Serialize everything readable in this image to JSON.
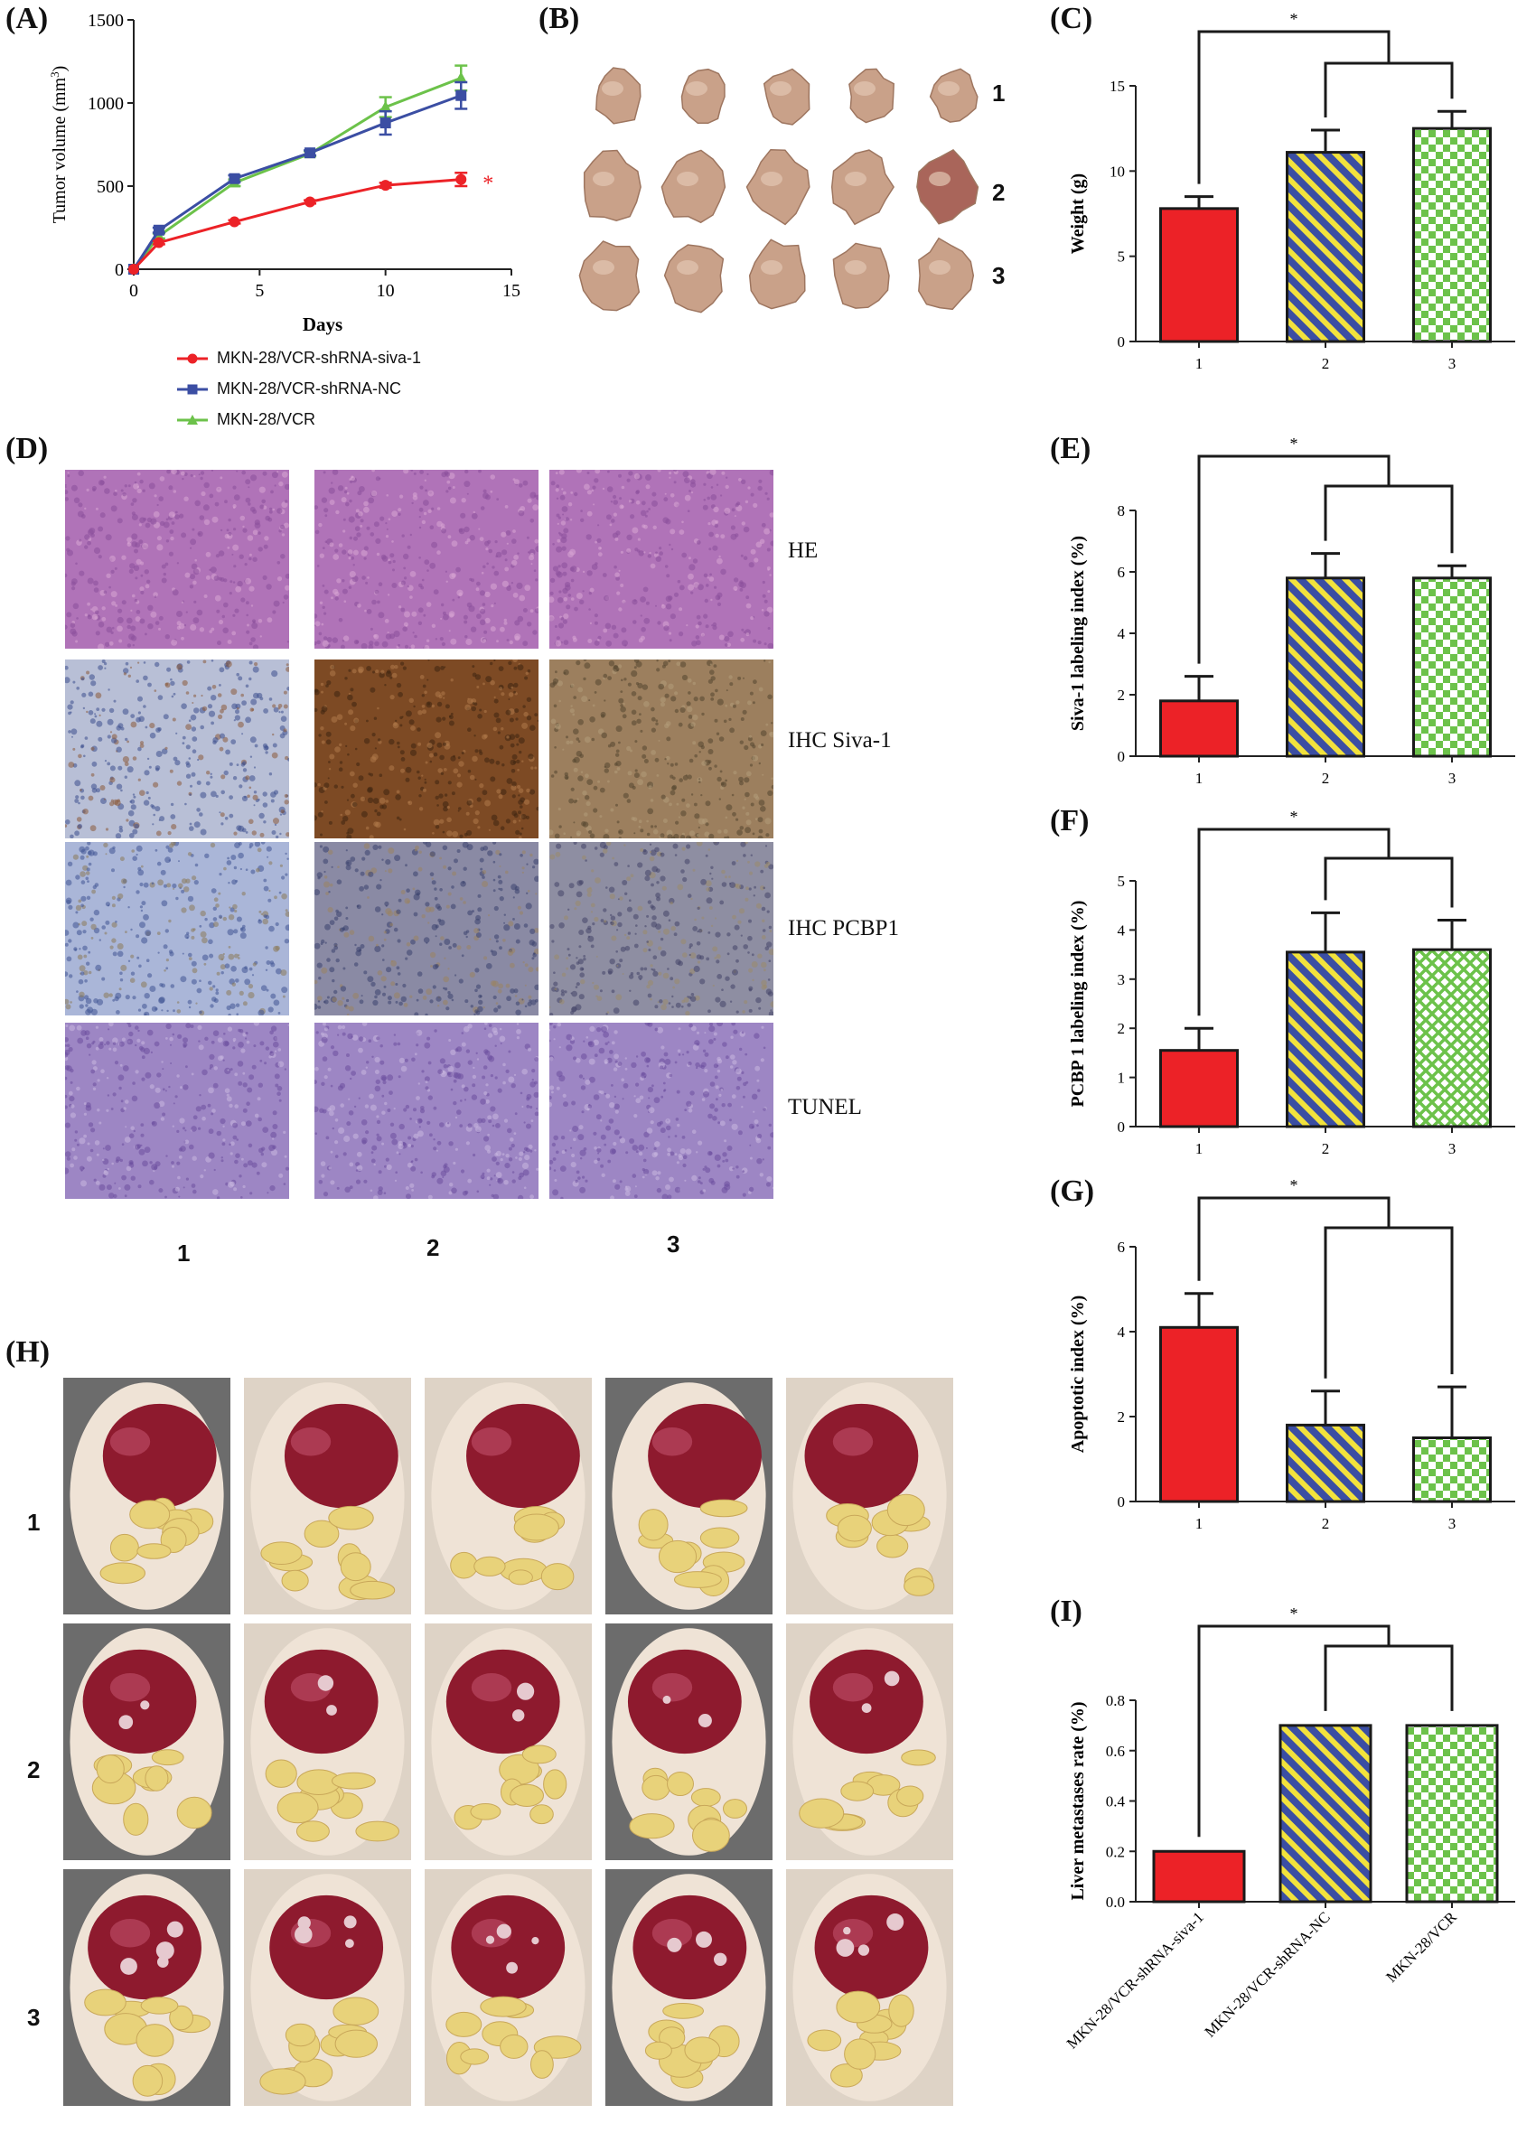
{
  "panels": {
    "A": "(A)",
    "B": "(B)",
    "C": "(C)",
    "D": "(D)",
    "E": "(E)",
    "F": "(F)",
    "G": "(G)",
    "H": "(H)",
    "I": "(I)"
  },
  "groups": [
    "1",
    "2",
    "3"
  ],
  "colors": {
    "red": "#ec2227",
    "blue": "#3b4ea3",
    "green": "#6cc24a",
    "yellow": "#f2e23c",
    "lightgreen": "#b6e39a"
  },
  "legend": [
    {
      "name": "MKN-28/VCR-shRNA-siva-1",
      "color": "#ec2227",
      "marker": "circle"
    },
    {
      "name": "MKN-28/VCR-shRNA-NC",
      "color": "#3b4ea3",
      "marker": "square"
    },
    {
      "name": "MKN-28/VCR",
      "color": "#6cc24a",
      "marker": "triangle"
    }
  ],
  "stains": [
    "HE",
    "IHC Siva-1",
    "IHC PCBP1",
    "TUNEL"
  ],
  "significance": "*",
  "chart_data": [
    {
      "id": "A",
      "type": "line",
      "xlabel": "Days",
      "ylabel": "Tumor volume (mm",
      "ylabel_sup": "3",
      "ylabel_tail": ")",
      "xlim": [
        0,
        15
      ],
      "ylim": [
        0,
        1500
      ],
      "xticks": [
        "0",
        "5",
        "10",
        "15"
      ],
      "yticks": [
        "0",
        "500",
        "1000",
        "1500"
      ],
      "series": [
        {
          "name": "MKN-28/VCR-shRNA-siva-1",
          "x": [
            0,
            1,
            4,
            7,
            10,
            13
          ],
          "y": [
            0,
            160,
            285,
            405,
            505,
            540
          ],
          "err": [
            0,
            10,
            10,
            10,
            15,
            40
          ]
        },
        {
          "name": "MKN-28/VCR-shRNA-NC",
          "x": [
            0,
            1,
            4,
            7,
            10,
            13
          ],
          "y": [
            0,
            235,
            545,
            700,
            880,
            1045
          ],
          "err": [
            0,
            15,
            20,
            15,
            70,
            80
          ]
        },
        {
          "name": "MKN-28/VCR",
          "x": [
            0,
            1,
            4,
            7,
            10,
            13
          ],
          "y": [
            0,
            200,
            520,
            695,
            975,
            1150
          ],
          "err": [
            0,
            15,
            20,
            15,
            60,
            75
          ]
        }
      ]
    },
    {
      "id": "C",
      "type": "bar",
      "ylabel": "Weight (g)",
      "categories": [
        "1",
        "2",
        "3"
      ],
      "ylim": [
        0,
        15
      ],
      "yticks": [
        "0",
        "5",
        "10",
        "15"
      ],
      "values": [
        7.8,
        11.1,
        12.5
      ],
      "err": [
        0.7,
        1.3,
        1.0
      ]
    },
    {
      "id": "E",
      "type": "bar",
      "ylabel": "Siva-1 labeling index (%)",
      "categories": [
        "1",
        "2",
        "3"
      ],
      "ylim": [
        0,
        8
      ],
      "yticks": [
        "0",
        "2",
        "4",
        "6",
        "8"
      ],
      "values": [
        1.8,
        5.8,
        5.8
      ],
      "err": [
        0.8,
        0.8,
        0.4
      ]
    },
    {
      "id": "F",
      "type": "bar",
      "ylabel": "PCBP 1 labeling index (%)",
      "categories": [
        "1",
        "2",
        "3"
      ],
      "ylim": [
        0,
        5
      ],
      "yticks": [
        "0",
        "1",
        "2",
        "3",
        "4",
        "5"
      ],
      "values": [
        1.55,
        3.55,
        3.6
      ],
      "err": [
        0.45,
        0.8,
        0.6
      ]
    },
    {
      "id": "G",
      "type": "bar",
      "ylabel": "Apoptotic index (%)",
      "categories": [
        "1",
        "2",
        "3"
      ],
      "ylim": [
        0,
        6
      ],
      "yticks": [
        "0",
        "2",
        "4",
        "6"
      ],
      "values": [
        4.1,
        1.8,
        1.5
      ],
      "err": [
        0.8,
        0.8,
        1.2
      ]
    },
    {
      "id": "I",
      "type": "bar",
      "ylabel": "Liver metastases rate (%)",
      "categories": [
        "MKN-28/VCR-shRNA-siva-1",
        "MKN-28/VCR-shRNA-NC",
        "MKN-28/VCR"
      ],
      "ylim": [
        0,
        0.8
      ],
      "yticks": [
        "0.0",
        "0.2",
        "0.4",
        "0.6",
        "0.8"
      ],
      "values": [
        0.2,
        0.7,
        0.7
      ],
      "err": [
        0,
        0,
        0
      ]
    }
  ]
}
